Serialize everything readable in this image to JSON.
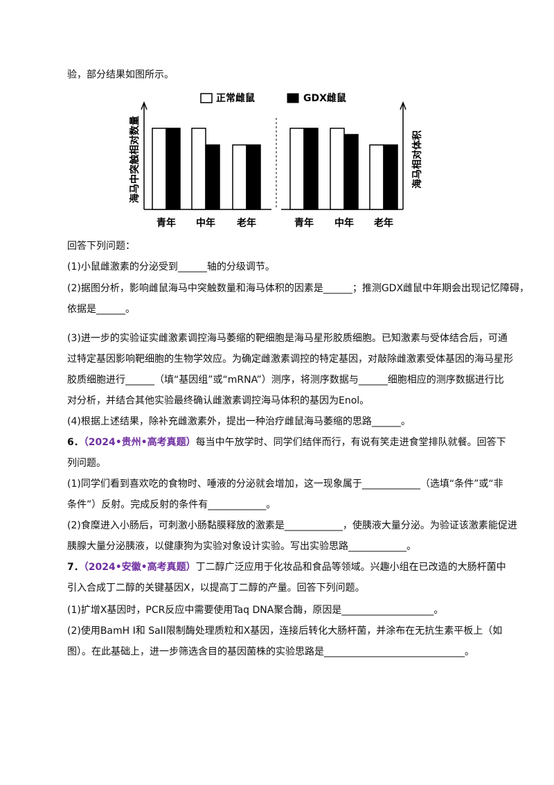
{
  "lines": [
    "验，部分结果如图所示。",
    "回答下列问题：",
    "(1)小鼠雌激素的分泌受到______轴的分级调节。",
    "(2)据图分析，影响雌鼠海马中突触数量和海马体积的因素是______；推测GDX雌鼠中年期会出现记忆障碍，",
    "依据是______。",
    "(3)进一步的实验证实雌激素调控海马萎缩的靶细胞是海马星形胶质细胞。已知激素与受体结合后，可通",
    "过特定基因影响靶细胞的生物学效应。为确定雌激素调控的特定基因，对敲除雌激素受体基因的海马星形",
    "胶质细胞进行______（填“基因组”或“mRNA”）测序，将测序数据与______细胞相应的测序数据进行比",
    "对分析，并结合其他实验最终确认雌激素调控海马体积的基因为Enol。",
    "(4)根据上述结果，除补充雌激素外，提出一种治疗雌鼠海马萎缩的思路______。",
    {
      "number": "6．",
      "source": "（2024•贵州•高考真题）",
      "text": "每当中午放学时、同学们结伴而行，有说有笑走进食堂排队就餐。回答下"
    },
    "列问题。",
    "(1)同学们看到喜欢吃的食物时、唾液的分泌就会增加，这一现象属于____________（选填“条件”或“非",
    "条件”）反射。完成反射的条件有____________。",
    "(2)食糜进入小肠后，可刺激小肠黏膜释放的激素是____________，使胰液大量分泌。为验证该激素能促进",
    "胰腺大量分泌胰液，以健康狗为实验对象设计实验。写出实验思路____________。",
    {
      "number": "7．",
      "source": "（2024•安徽•高考真题）",
      "text": "丁二醇广泛应用于化妆品和食品等领域。兴趣小组在已改造的大肠杆菌中"
    },
    "引入合成丁二醇的关键基因X，以提高丁二醇的产量。回答下列问题。",
    "(1)扩增X基因时，PCR反应中需要使用Taq DNA聚合酶，原因是___________________。",
    "(2)使用BamH I和 SalI限制酶处理质粒和X基因，连接后转化大肠杆菌，并涂布在无抗生素平板上（如",
    "图）。在此基础上，进一步筛选含目的基因菌株的实验思路是_____________________________。"
  ],
  "chart_data": [
    {
      "type": "bar",
      "ylabel": "海马中突触相对数量",
      "categories": [
        "青年",
        "中年",
        "老年"
      ],
      "series": [
        {
          "name": "正常雌鼠",
          "color": "#ffffff",
          "values": [
            117,
            117,
            93
          ]
        },
        {
          "name": "GDX雌鼠",
          "color": "#000000",
          "values": [
            117,
            93,
            93
          ]
        }
      ],
      "ylim": [
        0,
        150
      ]
    },
    {
      "type": "bar",
      "ylabel": "海马相对体积",
      "categories": [
        "青年",
        "中年",
        "老年"
      ],
      "series": [
        {
          "color": "#ffffff",
          "values": [
            117,
            117,
            93
          ]
        },
        {
          "color": "#000000",
          "values": [
            117,
            108,
            93
          ]
        }
      ],
      "ylim": [
        0,
        150
      ]
    }
  ]
}
